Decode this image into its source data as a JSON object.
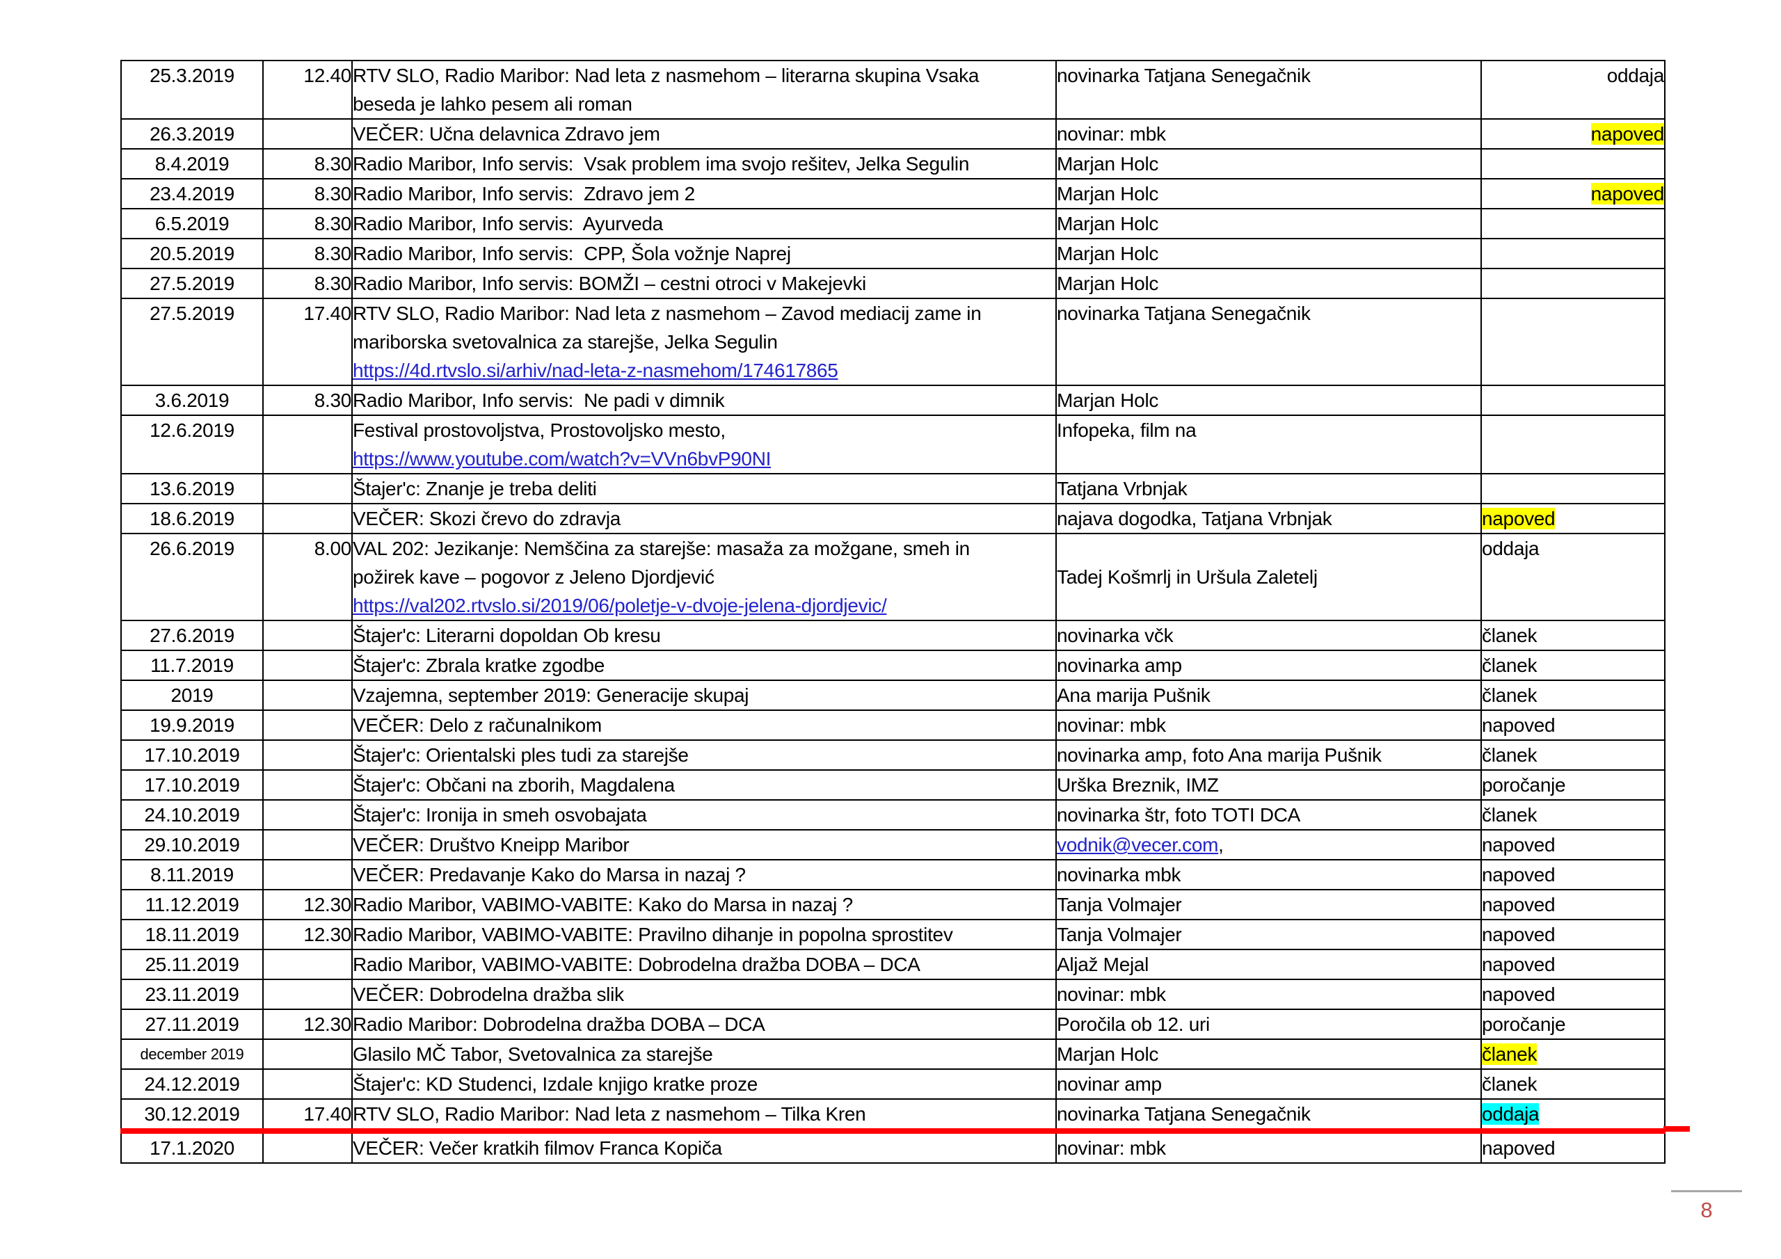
{
  "page": {
    "number": "8"
  },
  "colors": {
    "highlight_yellow": "#FFFF00",
    "highlight_cyan": "#00FFFF",
    "link_blue": "#2323CC",
    "red_separator": "#FF0000",
    "page_number_red": "#BE4B48",
    "footer_rule_gray": "#A6A6A6"
  },
  "table": {
    "rows": [
      {
        "date": "25.3.2019",
        "time": "12.40",
        "desc": [
          {
            "t": "RTV SLO, Radio Maribor: Nad leta z nasmehom – literarna skupina Vsaka"
          },
          {
            "t": "beseda je lahko pesem ali roman"
          }
        ],
        "who": [
          {
            "t": "novinarka Tatjana Senegačnik"
          }
        ],
        "type": {
          "t": "oddaja",
          "align": "right",
          "hl": null
        }
      },
      {
        "date": "26.3.2019",
        "time": "",
        "desc": [
          {
            "t": "VEČER: Učna delavnica Zdravo jem"
          }
        ],
        "who": [
          {
            "t": "novinar: mbk"
          }
        ],
        "type": {
          "t": "napoved",
          "align": "right",
          "hl": "yellow"
        }
      },
      {
        "date": "8.4.2019",
        "time": "8.30",
        "desc": [
          {
            "t": "Radio Maribor, Info servis:  Vsak problem ima svojo rešitev, Jelka Segulin"
          }
        ],
        "who": [
          {
            "t": "Marjan Holc"
          }
        ],
        "type": null
      },
      {
        "date": "23.4.2019",
        "time": "8.30",
        "desc": [
          {
            "t": "Radio Maribor, Info servis:  Zdravo jem 2"
          }
        ],
        "who": [
          {
            "t": "Marjan Holc"
          }
        ],
        "type": {
          "t": "napoved",
          "align": "right",
          "hl": "yellow"
        }
      },
      {
        "date": "6.5.2019",
        "time": "8.30",
        "desc": [
          {
            "t": "Radio Maribor, Info servis:  Ayurveda"
          }
        ],
        "who": [
          {
            "t": "Marjan Holc"
          }
        ],
        "type": null
      },
      {
        "date": "20.5.2019",
        "time": "8.30",
        "desc": [
          {
            "t": "Radio Maribor, Info servis:  CPP, Šola vožnje Naprej"
          }
        ],
        "who": [
          {
            "t": "Marjan Holc"
          }
        ],
        "type": null
      },
      {
        "date": "27.5.2019",
        "time": "8.30",
        "desc": [
          {
            "t": "Radio Maribor, Info servis: BOMŽI – cestni otroci v Makejevki"
          }
        ],
        "who": [
          {
            "t": "Marjan Holc"
          }
        ],
        "type": null
      },
      {
        "date": "27.5.2019",
        "time": "17.40",
        "desc": [
          {
            "t": "RTV SLO, Radio Maribor: Nad leta z nasmehom – Zavod mediacij zame in"
          },
          {
            "t": "mariborska svetovalnica za starejše, Jelka Segulin"
          },
          {
            "t": "https://4d.rtvslo.si/arhiv/nad-leta-z-nasmehom/174617865",
            "link": true
          }
        ],
        "who": [
          {
            "t": "novinarka Tatjana Senegačnik"
          }
        ],
        "type": null
      },
      {
        "date": "3.6.2019",
        "time": "8.30",
        "desc": [
          {
            "t": "Radio Maribor, Info servis:  Ne padi v dimnik"
          }
        ],
        "who": [
          {
            "t": "Marjan Holc"
          }
        ],
        "type": null
      },
      {
        "date": "12.6.2019",
        "time": "",
        "desc": [
          {
            "t": "Festival prostovoljstva, Prostovoljsko mesto,"
          },
          {
            "t": "https://www.youtube.com/watch?v=VVn6bvP90NI",
            "link": true
          }
        ],
        "who": [
          {
            "t": "Infopeka, film na"
          }
        ],
        "type": null
      },
      {
        "date": "13.6.2019",
        "time": "",
        "desc": [
          {
            "t": "Štajer'c: Znanje je treba deliti"
          }
        ],
        "who": [
          {
            "t": "Tatjana Vrbnjak"
          }
        ],
        "type": null
      },
      {
        "date": "18.6.2019",
        "time": "",
        "desc": [
          {
            "t": "VEČER: Skozi črevo do zdravja"
          }
        ],
        "who": [
          {
            "t": "najava dogodka, Tatjana Vrbnjak"
          }
        ],
        "type": {
          "t": "napoved",
          "align": "left",
          "hl": "yellow"
        }
      },
      {
        "date": "26.6.2019",
        "time": "8.00",
        "desc": [
          {
            "t": "VAL 202: Jezikanje: Nemščina za starejše: masaža za možgane, smeh in"
          },
          {
            "t": "požirek kave – pogovor z Jeleno Djordjević"
          },
          {
            "t": "https://val202.rtvslo.si/2019/06/poletje-v-dvoje-jelena-djordjevic/",
            "link": true
          }
        ],
        "who": [
          {
            "t": "Tadej Košmrlj in Uršula Zaletelj"
          }
        ],
        "who_mid": true,
        "type": {
          "t": "oddaja",
          "align": "left",
          "hl": null
        }
      },
      {
        "date": "27.6.2019",
        "time": "",
        "desc": [
          {
            "t": "Štajer'c: Literarni dopoldan Ob kresu"
          }
        ],
        "who": [
          {
            "t": "novinarka včk"
          }
        ],
        "type": {
          "t": "članek",
          "align": "left",
          "hl": null
        }
      },
      {
        "date": "11.7.2019",
        "time": "",
        "desc": [
          {
            "t": "Štajer'c: Zbrala kratke zgodbe"
          }
        ],
        "who": [
          {
            "t": "novinarka amp"
          }
        ],
        "type": {
          "t": "članek",
          "align": "left",
          "hl": null
        }
      },
      {
        "date": "2019",
        "time": "",
        "desc": [
          {
            "t": "Vzajemna, september 2019: Generacije skupaj"
          }
        ],
        "who": [
          {
            "t": "Ana marija Pušnik"
          }
        ],
        "type": {
          "t": "članek",
          "align": "left",
          "hl": null
        }
      },
      {
        "date": "19.9.2019",
        "time": "",
        "desc": [
          {
            "t": "VEČER: Delo z računalnikom"
          }
        ],
        "who": [
          {
            "t": "novinar: mbk"
          }
        ],
        "type": {
          "t": "napoved",
          "align": "left",
          "hl": null
        }
      },
      {
        "date": "17.10.2019",
        "time": "",
        "desc": [
          {
            "t": "Štajer'c: Orientalski ples tudi za starejše"
          }
        ],
        "who": [
          {
            "t": "novinarka amp, foto Ana marija Pušnik"
          }
        ],
        "type": {
          "t": "članek",
          "align": "left",
          "hl": null
        }
      },
      {
        "date": "17.10.2019",
        "time": "",
        "desc": [
          {
            "t": "Štajer'c: Občani na zborih, Magdalena"
          }
        ],
        "who": [
          {
            "t": "Urška Breznik, IMZ"
          }
        ],
        "type": {
          "t": "poročanje",
          "align": "left",
          "hl": null
        }
      },
      {
        "date": "24.10.2019",
        "time": "",
        "desc": [
          {
            "t": "Štajer'c: Ironija in smeh osvobajata"
          }
        ],
        "who": [
          {
            "t": "novinarka štr, foto TOTI DCA"
          }
        ],
        "type": {
          "t": "članek",
          "align": "left",
          "hl": null
        }
      },
      {
        "date": "29.10.2019",
        "time": "",
        "desc": [
          {
            "t": "VEČER: Društvo Kneipp Maribor"
          }
        ],
        "who": [
          {
            "t": "vodnik@vecer.com",
            "link": true
          },
          {
            "t": ","
          }
        ],
        "type": {
          "t": "napoved",
          "align": "left",
          "hl": null
        }
      },
      {
        "date": "8.11.2019",
        "time": "",
        "desc": [
          {
            "t": "VEČER: Predavanje Kako do Marsa in nazaj ?"
          }
        ],
        "who": [
          {
            "t": "novinarka mbk"
          }
        ],
        "type": {
          "t": "napoved",
          "align": "left",
          "hl": null
        }
      },
      {
        "date": "11.12.2019",
        "time": "12.30",
        "desc": [
          {
            "t": "Radio Maribor, VABIMO-VABITE: Kako do Marsa in nazaj ?"
          }
        ],
        "who": [
          {
            "t": "Tanja Volmajer"
          }
        ],
        "type": {
          "t": "napoved",
          "align": "left",
          "hl": null
        }
      },
      {
        "date": "18.11.2019",
        "time": "12.30",
        "desc": [
          {
            "t": "Radio Maribor, VABIMO-VABITE: Pravilno dihanje in popolna sprostitev"
          }
        ],
        "who": [
          {
            "t": "Tanja Volmajer"
          }
        ],
        "type": {
          "t": "napoved",
          "align": "left",
          "hl": null
        }
      },
      {
        "date": "25.11.2019",
        "time": "",
        "desc": [
          {
            "t": "Radio Maribor, VABIMO-VABITE: Dobrodelna dražba DOBA – DCA"
          }
        ],
        "who": [
          {
            "t": "Aljaž Mejal"
          }
        ],
        "type": {
          "t": "napoved",
          "align": "left",
          "hl": null
        }
      },
      {
        "date": "23.11.2019",
        "time": "",
        "desc": [
          {
            "t": "VEČER: Dobrodelna dražba slik"
          }
        ],
        "who": [
          {
            "t": "novinar: mbk"
          }
        ],
        "type": {
          "t": "napoved",
          "align": "left",
          "hl": null
        }
      },
      {
        "date": "27.11.2019",
        "time": "12.30",
        "desc": [
          {
            "t": "Radio Maribor: Dobrodelna dražba DOBA – DCA"
          }
        ],
        "who": [
          {
            "t": "Poročila ob 12. uri"
          }
        ],
        "type": {
          "t": "poročanje",
          "align": "left",
          "hl": null
        }
      },
      {
        "date": "december 2019",
        "small": true,
        "time": "",
        "desc": [
          {
            "t": "Glasilo MČ Tabor, Svetovalnica za starejše"
          }
        ],
        "who": [
          {
            "t": "Marjan Holc"
          }
        ],
        "type": {
          "t": "članek",
          "align": "left",
          "hl": "yellow"
        }
      },
      {
        "date": "24.12.2019",
        "time": "",
        "desc": [
          {
            "t": "Štajer'c: KD Studenci, Izdale knjigo kratke proze"
          }
        ],
        "who": [
          {
            "t": "novinar amp"
          }
        ],
        "type": {
          "t": "članek",
          "align": "left",
          "hl": null
        }
      },
      {
        "date": "30.12.2019",
        "time": "17.40",
        "desc": [
          {
            "t": "RTV SLO, Radio Maribor: Nad leta z nasmehom – Tilka Kren"
          }
        ],
        "who": [
          {
            "t": "novinarka Tatjana Senegačnik"
          }
        ],
        "type": {
          "t": "oddaja",
          "align": "left",
          "hl": "cyan"
        },
        "red_line": true
      },
      {
        "date": "17.1.2020",
        "time": "",
        "desc": [
          {
            "t": "VEČER: Večer kratkih filmov Franca Kopiča"
          }
        ],
        "who": [
          {
            "t": "novinar: mbk"
          }
        ],
        "type": {
          "t": "napoved",
          "align": "left",
          "hl": null
        }
      }
    ]
  }
}
